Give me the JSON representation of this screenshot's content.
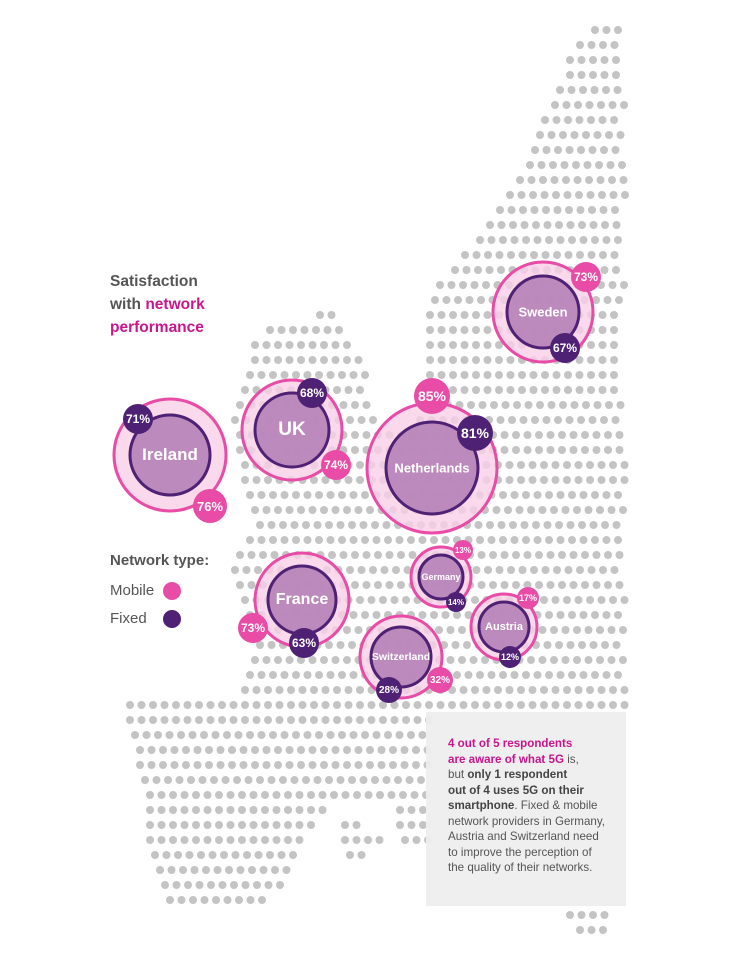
{
  "title": {
    "line1": "Satisfaction",
    "line2a": "with ",
    "line2b": "network",
    "line3": "performance"
  },
  "legend": {
    "title": "Network type:",
    "mobile_label": "Mobile",
    "fixed_label": "Fixed",
    "mobile_color": "#e84ca6",
    "fixed_color": "#4f2174"
  },
  "colors": {
    "map_dot": "#c4c4c4",
    "outer_ring_fill": "#f7cfe6",
    "outer_ring_stroke": "#e84ca6",
    "inner_fill": "#b683b7",
    "inner_stroke": "#4f2174",
    "highlight": "#c8168c"
  },
  "countries": [
    {
      "name": "Ireland",
      "mobile": "76%",
      "fixed": "71%"
    },
    {
      "name": "UK",
      "mobile": "74%",
      "fixed": "68%"
    },
    {
      "name": "Netherlands",
      "mobile": "85%",
      "fixed": "81%"
    },
    {
      "name": "Sweden",
      "mobile": "73%",
      "fixed": "67%"
    },
    {
      "name": "France",
      "mobile": "73%",
      "fixed": "63%"
    },
    {
      "name": "Germany",
      "mobile": "13%",
      "fixed": "14%"
    },
    {
      "name": "Austria",
      "mobile": "17%",
      "fixed": "12%"
    },
    {
      "name": "Switzerland",
      "mobile": "32%",
      "fixed": "28%"
    }
  ],
  "note": {
    "hl1": "4 out of 5 respondents",
    "hl2": "are aware of what 5G",
    "t1": " is,",
    "t2": "but ",
    "b1": "only 1 respondent",
    "b2": "out of 4 uses 5G on their",
    "b3": "smartphone",
    "t3": ". Fixed & mobile",
    "l5": "network providers in Germany,",
    "l6": "Austria and Switzerland need",
    "l7": "to improve the perception of",
    "l8": "the quality of their networks."
  }
}
